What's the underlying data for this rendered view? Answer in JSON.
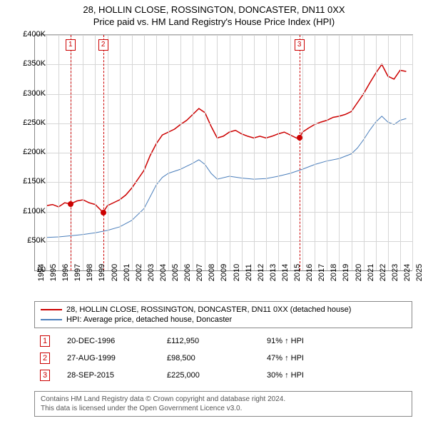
{
  "title_line1": "28, HOLLIN CLOSE, ROSSINGTON, DONCASTER, DN11 0XX",
  "title_line2": "Price paid vs. HM Land Registry's House Price Index (HPI)",
  "chart": {
    "type": "line",
    "x_min": 1994,
    "x_max": 2025,
    "y_min": 0,
    "y_max": 400000,
    "y_ticks": [
      0,
      50000,
      100000,
      150000,
      200000,
      250000,
      300000,
      350000,
      400000
    ],
    "y_tick_labels": [
      "£0",
      "£50K",
      "£100K",
      "£150K",
      "£200K",
      "£250K",
      "£300K",
      "£350K",
      "£400K"
    ],
    "x_ticks": [
      1994,
      1995,
      1996,
      1997,
      1998,
      1999,
      2000,
      2001,
      2002,
      2003,
      2004,
      2005,
      2006,
      2007,
      2008,
      2009,
      2010,
      2011,
      2012,
      2013,
      2014,
      2015,
      2016,
      2017,
      2018,
      2019,
      2020,
      2021,
      2022,
      2023,
      2024,
      2025
    ],
    "background_color": "#ffffff",
    "grid_color": "#d6d6d6",
    "axis_color": "#888888",
    "series": [
      {
        "name": "28, HOLLIN CLOSE, ROSSINGTON, DONCASTER, DN11 0XX (detached house)",
        "color": "#cc0000",
        "width": 1.5,
        "data": [
          [
            1995.0,
            110000
          ],
          [
            1995.5,
            112000
          ],
          [
            1996.0,
            108000
          ],
          [
            1996.5,
            115000
          ],
          [
            1996.97,
            112950
          ],
          [
            1997.5,
            118000
          ],
          [
            1998.0,
            120000
          ],
          [
            1998.5,
            115000
          ],
          [
            1999.0,
            112000
          ],
          [
            1999.65,
            98500
          ],
          [
            2000.0,
            110000
          ],
          [
            2000.5,
            115000
          ],
          [
            2001.0,
            120000
          ],
          [
            2001.5,
            128000
          ],
          [
            2002.0,
            140000
          ],
          [
            2002.5,
            155000
          ],
          [
            2003.0,
            170000
          ],
          [
            2003.5,
            195000
          ],
          [
            2004.0,
            215000
          ],
          [
            2004.5,
            230000
          ],
          [
            2005.0,
            235000
          ],
          [
            2005.5,
            240000
          ],
          [
            2006.0,
            248000
          ],
          [
            2006.5,
            255000
          ],
          [
            2007.0,
            265000
          ],
          [
            2007.5,
            275000
          ],
          [
            2008.0,
            268000
          ],
          [
            2008.5,
            245000
          ],
          [
            2009.0,
            225000
          ],
          [
            2009.5,
            228000
          ],
          [
            2010.0,
            235000
          ],
          [
            2010.5,
            238000
          ],
          [
            2011.0,
            232000
          ],
          [
            2011.5,
            228000
          ],
          [
            2012.0,
            225000
          ],
          [
            2012.5,
            228000
          ],
          [
            2013.0,
            225000
          ],
          [
            2013.5,
            228000
          ],
          [
            2014.0,
            232000
          ],
          [
            2014.5,
            235000
          ],
          [
            2015.0,
            230000
          ],
          [
            2015.5,
            225000
          ],
          [
            2015.74,
            225000
          ],
          [
            2016.0,
            235000
          ],
          [
            2016.5,
            242000
          ],
          [
            2017.0,
            248000
          ],
          [
            2017.5,
            252000
          ],
          [
            2018.0,
            255000
          ],
          [
            2018.5,
            260000
          ],
          [
            2019.0,
            262000
          ],
          [
            2019.5,
            265000
          ],
          [
            2020.0,
            270000
          ],
          [
            2020.5,
            285000
          ],
          [
            2021.0,
            300000
          ],
          [
            2021.5,
            318000
          ],
          [
            2022.0,
            335000
          ],
          [
            2022.5,
            350000
          ],
          [
            2023.0,
            330000
          ],
          [
            2023.5,
            325000
          ],
          [
            2024.0,
            340000
          ],
          [
            2024.5,
            338000
          ]
        ]
      },
      {
        "name": "HPI: Average price, detached house, Doncaster",
        "color": "#4a7ebb",
        "width": 1,
        "data": [
          [
            1995.0,
            56000
          ],
          [
            1996.0,
            57000
          ],
          [
            1997.0,
            59000
          ],
          [
            1998.0,
            61000
          ],
          [
            1999.0,
            64000
          ],
          [
            2000.0,
            68000
          ],
          [
            2001.0,
            74000
          ],
          [
            2002.0,
            85000
          ],
          [
            2003.0,
            105000
          ],
          [
            2003.5,
            125000
          ],
          [
            2004.0,
            145000
          ],
          [
            2004.5,
            158000
          ],
          [
            2005.0,
            165000
          ],
          [
            2006.0,
            172000
          ],
          [
            2007.0,
            182000
          ],
          [
            2007.5,
            188000
          ],
          [
            2008.0,
            180000
          ],
          [
            2008.5,
            165000
          ],
          [
            2009.0,
            155000
          ],
          [
            2010.0,
            160000
          ],
          [
            2011.0,
            157000
          ],
          [
            2012.0,
            155000
          ],
          [
            2013.0,
            156000
          ],
          [
            2014.0,
            160000
          ],
          [
            2015.0,
            165000
          ],
          [
            2016.0,
            172000
          ],
          [
            2017.0,
            180000
          ],
          [
            2018.0,
            186000
          ],
          [
            2019.0,
            190000
          ],
          [
            2020.0,
            198000
          ],
          [
            2020.5,
            208000
          ],
          [
            2021.0,
            222000
          ],
          [
            2021.5,
            238000
          ],
          [
            2022.0,
            252000
          ],
          [
            2022.5,
            262000
          ],
          [
            2023.0,
            252000
          ],
          [
            2023.5,
            248000
          ],
          [
            2024.0,
            255000
          ],
          [
            2024.5,
            258000
          ]
        ]
      }
    ],
    "events": [
      {
        "n": "1",
        "year": 1996.97,
        "price": 112950,
        "date": "20-DEC-1996",
        "price_label": "£112,950",
        "hpi": "91% ↑ HPI"
      },
      {
        "n": "2",
        "year": 1999.65,
        "price": 98500,
        "date": "27-AUG-1999",
        "price_label": "£98,500",
        "hpi": "47% ↑ HPI"
      },
      {
        "n": "3",
        "year": 2015.74,
        "price": 225000,
        "date": "28-SEP-2015",
        "price_label": "£225,000",
        "hpi": "30% ↑ HPI"
      }
    ]
  },
  "legend": {
    "items": [
      {
        "color": "#cc0000",
        "label": "28, HOLLIN CLOSE, ROSSINGTON, DONCASTER, DN11 0XX (detached house)"
      },
      {
        "color": "#4a7ebb",
        "label": "HPI: Average price, detached house, Doncaster"
      }
    ]
  },
  "footer_line1": "Contains HM Land Registry data © Crown copyright and database right 2024.",
  "footer_line2": "This data is licensed under the Open Government Licence v3.0."
}
